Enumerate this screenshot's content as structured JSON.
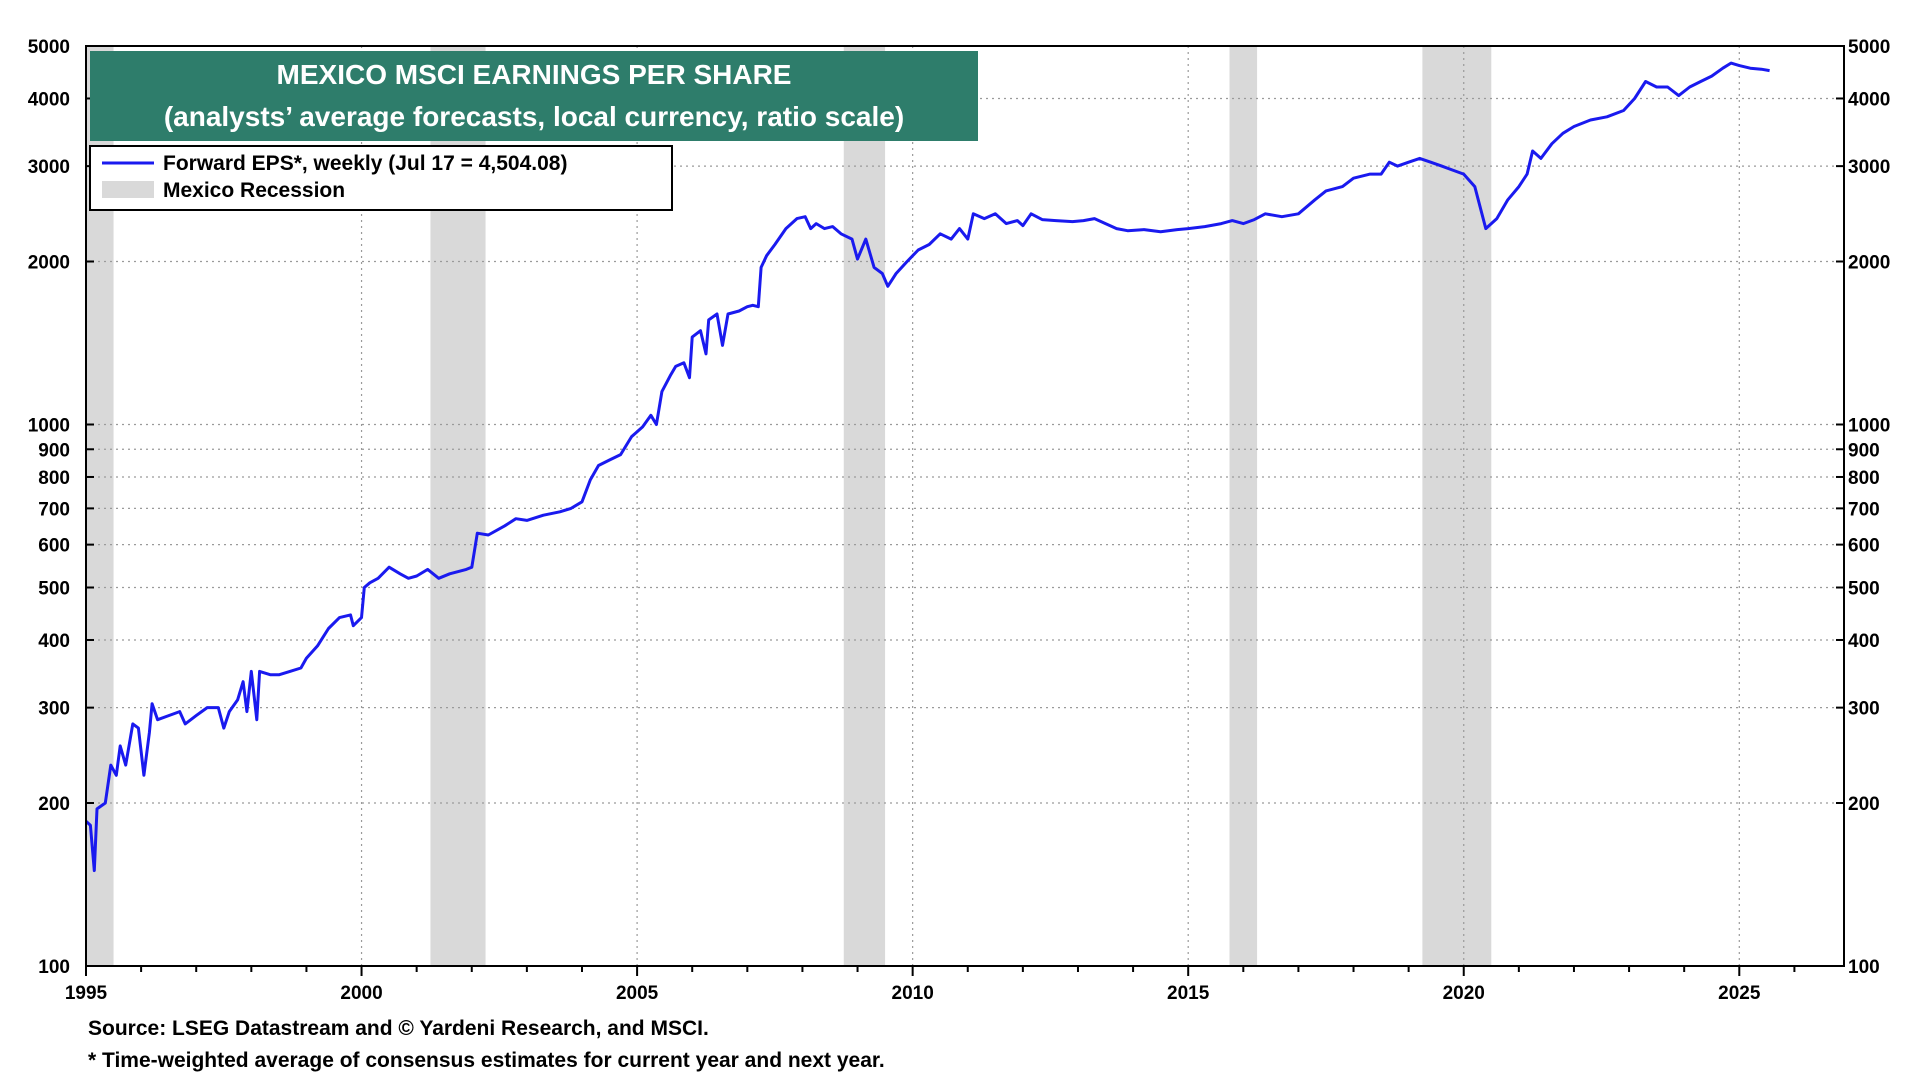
{
  "chart_data": {
    "type": "line",
    "title": "MEXICO MSCI EARNINGS PER SHARE",
    "subtitle": "(analysts’ average forecasts, local currency, ratio scale)",
    "y_scale": "log",
    "ylim": [
      100,
      5000
    ],
    "xlim": [
      1995.0,
      2026.9
    ],
    "x_ticks": [
      "1995",
      "2000",
      "2005",
      "2010",
      "2015",
      "2020",
      "2025"
    ],
    "y_ticks": [
      {
        "value": 100,
        "label": "100"
      },
      {
        "value": 200,
        "label": "200"
      },
      {
        "value": 300,
        "label": "300"
      },
      {
        "value": 400,
        "label": "400"
      },
      {
        "value": 500,
        "label": "500"
      },
      {
        "value": 600,
        "label": "600"
      },
      {
        "value": 700,
        "label": "700"
      },
      {
        "value": 800,
        "label": "800"
      },
      {
        "value": 900,
        "label": "900"
      },
      {
        "value": 1000,
        "label": "1000"
      },
      {
        "value": 2000,
        "label": "2000"
      },
      {
        "value": 3000,
        "label": "3000"
      },
      {
        "value": 4000,
        "label": "4000"
      },
      {
        "value": 5000,
        "label": "5000"
      }
    ],
    "grid": true,
    "legend_position": "top-left",
    "colors": {
      "series": "#1a1aef",
      "recession": "#d9d9d9",
      "title_box": "#2e7d6b",
      "title_text": "#ffffff"
    },
    "series": [
      {
        "name": "Forward EPS*, weekly (Jul 17 = 4,504.08)",
        "points": [
          [
            1995.0,
            185
          ],
          [
            1995.08,
            182
          ],
          [
            1995.15,
            150
          ],
          [
            1995.2,
            195
          ],
          [
            1995.35,
            200
          ],
          [
            1995.45,
            235
          ],
          [
            1995.55,
            225
          ],
          [
            1995.62,
            255
          ],
          [
            1995.72,
            235
          ],
          [
            1995.85,
            280
          ],
          [
            1995.95,
            275
          ],
          [
            1996.05,
            225
          ],
          [
            1996.15,
            270
          ],
          [
            1996.2,
            305
          ],
          [
            1996.3,
            285
          ],
          [
            1996.5,
            290
          ],
          [
            1996.7,
            295
          ],
          [
            1996.8,
            280
          ],
          [
            1997.0,
            290
          ],
          [
            1997.2,
            300
          ],
          [
            1997.4,
            300
          ],
          [
            1997.5,
            275
          ],
          [
            1997.6,
            295
          ],
          [
            1997.75,
            310
          ],
          [
            1997.85,
            335
          ],
          [
            1997.92,
            295
          ],
          [
            1998.0,
            350
          ],
          [
            1998.1,
            285
          ],
          [
            1998.15,
            350
          ],
          [
            1998.35,
            345
          ],
          [
            1998.5,
            345
          ],
          [
            1998.7,
            350
          ],
          [
            1998.9,
            355
          ],
          [
            1999.0,
            370
          ],
          [
            1999.2,
            390
          ],
          [
            1999.4,
            420
          ],
          [
            1999.6,
            440
          ],
          [
            1999.8,
            445
          ],
          [
            1999.85,
            425
          ],
          [
            2000.0,
            440
          ],
          [
            2000.05,
            500
          ],
          [
            2000.15,
            510
          ],
          [
            2000.3,
            520
          ],
          [
            2000.5,
            545
          ],
          [
            2000.7,
            530
          ],
          [
            2000.85,
            520
          ],
          [
            2001.0,
            525
          ],
          [
            2001.2,
            540
          ],
          [
            2001.4,
            520
          ],
          [
            2001.6,
            530
          ],
          [
            2001.9,
            540
          ],
          [
            2002.0,
            545
          ],
          [
            2002.1,
            630
          ],
          [
            2002.3,
            625
          ],
          [
            2002.6,
            650
          ],
          [
            2002.8,
            670
          ],
          [
            2003.0,
            665
          ],
          [
            2003.3,
            680
          ],
          [
            2003.6,
            690
          ],
          [
            2003.8,
            700
          ],
          [
            2004.0,
            720
          ],
          [
            2004.15,
            790
          ],
          [
            2004.3,
            840
          ],
          [
            2004.5,
            860
          ],
          [
            2004.7,
            880
          ],
          [
            2004.9,
            950
          ],
          [
            2005.1,
            990
          ],
          [
            2005.25,
            1040
          ],
          [
            2005.35,
            1000
          ],
          [
            2005.45,
            1150
          ],
          [
            2005.6,
            1230
          ],
          [
            2005.7,
            1280
          ],
          [
            2005.85,
            1300
          ],
          [
            2005.95,
            1220
          ],
          [
            2006.0,
            1450
          ],
          [
            2006.15,
            1490
          ],
          [
            2006.25,
            1350
          ],
          [
            2006.3,
            1560
          ],
          [
            2006.45,
            1600
          ],
          [
            2006.55,
            1400
          ],
          [
            2006.65,
            1600
          ],
          [
            2006.85,
            1620
          ],
          [
            2007.0,
            1650
          ],
          [
            2007.1,
            1660
          ],
          [
            2007.2,
            1650
          ],
          [
            2007.25,
            1950
          ],
          [
            2007.35,
            2050
          ],
          [
            2007.5,
            2150
          ],
          [
            2007.7,
            2300
          ],
          [
            2007.9,
            2400
          ],
          [
            2008.05,
            2420
          ],
          [
            2008.15,
            2300
          ],
          [
            2008.25,
            2350
          ],
          [
            2008.4,
            2300
          ],
          [
            2008.55,
            2320
          ],
          [
            2008.7,
            2250
          ],
          [
            2008.9,
            2200
          ],
          [
            2009.0,
            2020
          ],
          [
            2009.15,
            2200
          ],
          [
            2009.3,
            1950
          ],
          [
            2009.45,
            1900
          ],
          [
            2009.55,
            1800
          ],
          [
            2009.7,
            1900
          ],
          [
            2009.9,
            2000
          ],
          [
            2010.1,
            2100
          ],
          [
            2010.3,
            2150
          ],
          [
            2010.5,
            2250
          ],
          [
            2010.7,
            2200
          ],
          [
            2010.85,
            2300
          ],
          [
            2011.0,
            2200
          ],
          [
            2011.1,
            2450
          ],
          [
            2011.3,
            2400
          ],
          [
            2011.5,
            2450
          ],
          [
            2011.7,
            2350
          ],
          [
            2011.9,
            2380
          ],
          [
            2012.0,
            2330
          ],
          [
            2012.15,
            2450
          ],
          [
            2012.35,
            2390
          ],
          [
            2012.6,
            2380
          ],
          [
            2012.9,
            2370
          ],
          [
            2013.1,
            2380
          ],
          [
            2013.3,
            2400
          ],
          [
            2013.5,
            2350
          ],
          [
            2013.7,
            2300
          ],
          [
            2013.9,
            2280
          ],
          [
            2014.2,
            2290
          ],
          [
            2014.5,
            2270
          ],
          [
            2014.8,
            2290
          ],
          [
            2015.0,
            2300
          ],
          [
            2015.3,
            2320
          ],
          [
            2015.6,
            2350
          ],
          [
            2015.8,
            2380
          ],
          [
            2016.0,
            2350
          ],
          [
            2016.2,
            2390
          ],
          [
            2016.4,
            2450
          ],
          [
            2016.7,
            2420
          ],
          [
            2017.0,
            2450
          ],
          [
            2017.3,
            2600
          ],
          [
            2017.5,
            2700
          ],
          [
            2017.8,
            2750
          ],
          [
            2018.0,
            2850
          ],
          [
            2018.3,
            2900
          ],
          [
            2018.5,
            2900
          ],
          [
            2018.65,
            3050
          ],
          [
            2018.8,
            3000
          ],
          [
            2019.0,
            3050
          ],
          [
            2019.2,
            3100
          ],
          [
            2019.4,
            3050
          ],
          [
            2019.6,
            3000
          ],
          [
            2019.8,
            2950
          ],
          [
            2020.0,
            2900
          ],
          [
            2020.2,
            2750
          ],
          [
            2020.4,
            2300
          ],
          [
            2020.6,
            2400
          ],
          [
            2020.8,
            2600
          ],
          [
            2021.0,
            2750
          ],
          [
            2021.15,
            2900
          ],
          [
            2021.25,
            3200
          ],
          [
            2021.4,
            3100
          ],
          [
            2021.6,
            3300
          ],
          [
            2021.8,
            3450
          ],
          [
            2022.0,
            3550
          ],
          [
            2022.3,
            3650
          ],
          [
            2022.6,
            3700
          ],
          [
            2022.9,
            3800
          ],
          [
            2023.1,
            4000
          ],
          [
            2023.3,
            4300
          ],
          [
            2023.5,
            4200
          ],
          [
            2023.7,
            4200
          ],
          [
            2023.9,
            4050
          ],
          [
            2024.1,
            4200
          ],
          [
            2024.3,
            4300
          ],
          [
            2024.5,
            4400
          ],
          [
            2024.7,
            4550
          ],
          [
            2024.85,
            4650
          ],
          [
            2025.0,
            4600
          ],
          [
            2025.2,
            4550
          ],
          [
            2025.4,
            4530
          ],
          [
            2025.55,
            4504
          ]
        ]
      },
      {
        "name": "Mexico Recession",
        "type": "shaded_ranges",
        "ranges": [
          [
            1995.0,
            1995.5
          ],
          [
            2001.25,
            2002.25
          ],
          [
            2008.75,
            2009.5
          ],
          [
            2015.75,
            2016.25
          ],
          [
            2019.25,
            2020.5
          ]
        ]
      }
    ]
  },
  "legend": {
    "eps_label": "Forward EPS*, weekly (Jul 17 = 4,504.08)",
    "recession_label": "Mexico Recession"
  },
  "footnotes": {
    "source": "Source: LSEG Datastream and © Yardeni Research, and MSCI.",
    "note": "* Time-weighted average of consensus estimates for current year and next year."
  }
}
